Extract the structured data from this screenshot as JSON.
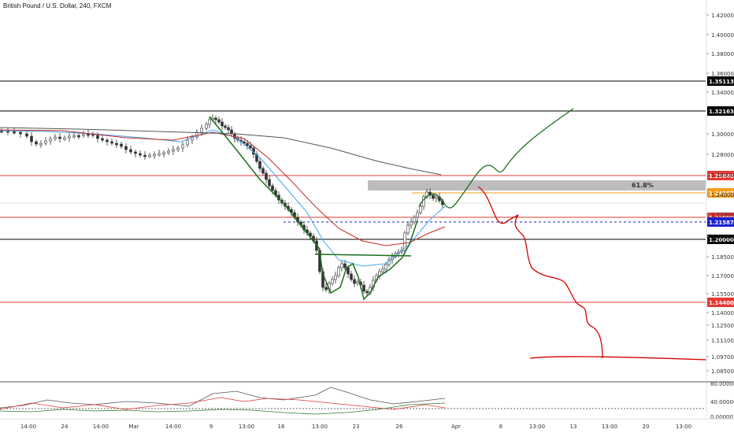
{
  "chart_data": {
    "type": "candlestick",
    "title": "British Pound / U.S. Dollar, 240, FXCM",
    "price_axis": {
      "ylim": [
        1.084,
        1.43
      ],
      "ticks": [
        1.42,
        1.4,
        1.38,
        1.36,
        1.34,
        1.3,
        1.28,
        1.26,
        1.24,
        1.22,
        1.2,
        1.185,
        1.17,
        1.155,
        1.14,
        1.125,
        1.111,
        1.097,
        1.085
      ],
      "tick_labels": [
        "1.42000",
        "1.40000",
        "1.38000",
        "1.36000",
        "1.34000",
        "1.30000",
        "1.28000",
        "1.26000",
        "1.24000",
        "1.22000",
        "1.20000",
        "1.18500",
        "1.17000",
        "1.15500",
        "1.14000",
        "1.12500",
        "1.11100",
        "1.09700",
        "1.08500"
      ]
    },
    "time_axis": {
      "labels": [
        "14:00",
        "24",
        "14:00",
        "Mar",
        "14:00",
        "9",
        "13:00",
        "16",
        "13:00",
        "23",
        "26",
        "Apr",
        "6",
        "13:00",
        "13",
        "13:00",
        "20",
        "13:00"
      ]
    },
    "horizontal_levels": [
      {
        "label": "1.35113",
        "color": "#000000",
        "label_bg": "#000000",
        "line": "black"
      },
      {
        "label": "1.32163",
        "color": "#000000",
        "label_bg": "#000000",
        "line": "black"
      },
      {
        "label": "1.25840",
        "color": "#e53935",
        "label_bg": "#e53935",
        "line": "red"
      },
      {
        "label": "1.24157",
        "color": "#f59c1a",
        "label_bg": "#f59c1a",
        "line": "orange"
      },
      {
        "label": "1.22000",
        "color": "#e53935",
        "label_bg": "#e53935",
        "line": "red"
      },
      {
        "label": "1.21587",
        "color": "#1e22cc",
        "label_bg": "#1e22cc",
        "line": "blue-dashed"
      },
      {
        "label": "1.20000",
        "color": "#000000",
        "label_bg": "#000000",
        "line": "black"
      },
      {
        "label": "1.14400",
        "color": "#e53935",
        "label_bg": "#e53935",
        "line": "red"
      }
    ],
    "fib_zone": {
      "label": "61.8%",
      "color": "#bdbdbd"
    },
    "oscillator_panel": {
      "ticks": [
        80.0,
        40.0,
        0.0
      ],
      "tick_labels": [
        "80.00000",
        "40.00000",
        "0.00000"
      ]
    },
    "colors": {
      "bull_candle": "#333333",
      "ma_blue": "#42a5f5",
      "ma_red": "#c62828",
      "ma_gray": "#555555",
      "pattern_green": "#1b6e1b",
      "projection_green": "#1b6e1b",
      "projection_red": "#d50000"
    }
  }
}
